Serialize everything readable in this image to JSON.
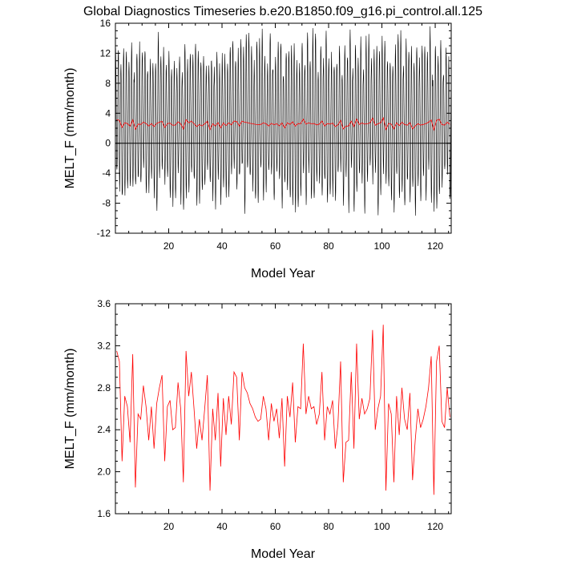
{
  "title": "Global Diagnostics Timeseries b.e20.B1850.f09_g16.pi_control.all.125",
  "chart_data": [
    {
      "type": "line",
      "title": "Global Diagnostics Timeseries b.e20.B1850.f09_g16.pi_control.all.125",
      "xlabel": "Model Year",
      "ylabel": "MELT_F (mm/month)",
      "xlim": [
        0,
        126
      ],
      "ylim": [
        -12,
        16
      ],
      "xticks": [
        20,
        40,
        60,
        80,
        100,
        120
      ],
      "yticks": [
        -12,
        -8,
        -4,
        0,
        4,
        8,
        12,
        16
      ],
      "zero_line": true,
      "series": [
        {
          "color": "#000000",
          "seasonal": {
            "high": [
              10.5,
              11.0,
              12.0,
              13.0,
              14.5
            ],
            "low": [
              -4.0,
              -5.0,
              -6.5,
              -7.5,
              -8.5
            ]
          }
        },
        {
          "color": "#ff0000",
          "ref": "annual_mean"
        }
      ]
    },
    {
      "type": "line",
      "xlabel": "Model Year",
      "ylabel": "MELT_F (mm/month)",
      "xlim": [
        0,
        126
      ],
      "ylim": [
        1.6,
        3.6
      ],
      "xticks": [
        20,
        40,
        60,
        80,
        100,
        120
      ],
      "yticks": [
        1.6,
        2.0,
        2.4,
        2.8,
        3.2,
        3.6
      ],
      "series": [
        {
          "color": "#ff0000",
          "x_start": 1,
          "values": [
            3.15,
            3.05,
            2.1,
            2.72,
            2.62,
            2.28,
            3.12,
            1.85,
            2.55,
            2.5,
            2.82,
            2.62,
            2.3,
            2.62,
            2.22,
            2.65,
            2.8,
            2.92,
            2.1,
            2.62,
            2.68,
            2.4,
            2.42,
            2.85,
            2.6,
            1.9,
            3.15,
            2.72,
            2.95,
            2.6,
            2.22,
            2.5,
            2.3,
            2.6,
            2.92,
            1.82,
            2.6,
            2.3,
            2.75,
            2.05,
            2.7,
            2.35,
            2.72,
            2.45,
            2.95,
            2.9,
            2.3,
            2.95,
            2.8,
            2.75,
            2.65,
            2.6,
            2.52,
            2.48,
            2.5,
            2.72,
            2.6,
            2.3,
            2.65,
            2.48,
            2.6,
            2.32,
            2.7,
            2.05,
            2.72,
            2.52,
            2.85,
            2.28,
            2.62,
            2.6,
            3.22,
            2.55,
            2.72,
            2.6,
            2.62,
            2.45,
            2.55,
            2.95,
            2.3,
            2.62,
            2.55,
            2.68,
            2.22,
            2.45,
            3.05,
            1.9,
            2.28,
            2.3,
            2.95,
            2.22,
            3.22,
            2.5,
            2.7,
            2.55,
            2.6,
            2.7,
            3.35,
            2.4,
            2.6,
            2.72,
            3.4,
            1.82,
            2.65,
            2.55,
            1.9,
            2.72,
            2.35,
            2.8,
            2.5,
            2.4,
            2.75,
            1.92,
            2.3,
            2.6,
            2.42,
            2.5,
            2.62,
            2.8,
            3.1,
            1.78,
            3.05,
            3.2,
            2.48,
            2.42,
            2.8,
            2.52
          ]
        }
      ]
    }
  ]
}
